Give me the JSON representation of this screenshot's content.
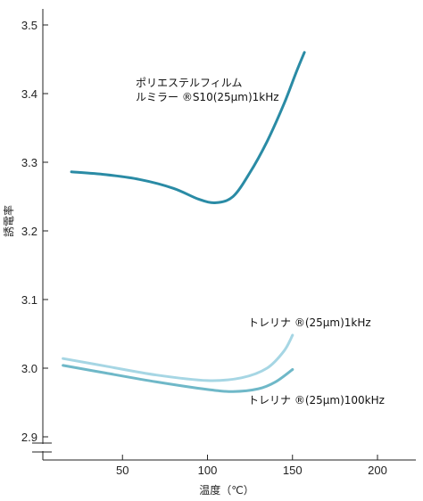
{
  "chart_data": {
    "type": "line",
    "xlabel": "温度（℃）",
    "ylabel": "誘電率",
    "xlim": [
      0,
      225
    ],
    "ylim": [
      2.875,
      3.53
    ],
    "x_ticks": [
      50,
      100,
      150,
      200
    ],
    "y_ticks": [
      2.9,
      3.0,
      3.1,
      3.2,
      3.3,
      3.4,
      3.5
    ],
    "y_tick_labels": [
      "2.9",
      "3.0",
      "3.1",
      "3.2",
      "3.3",
      "3.4",
      "3.5"
    ],
    "axis_break": true,
    "grid": false,
    "series": [
      {
        "name": "ポリエステルフィルム ルミラー®S10(25μm)1kHz",
        "label_lines": [
          "ポリエステルフィルム",
          "ルミラー ®S10(25μm)1kHz"
        ],
        "color": "#2a8ba5",
        "x": [
          20,
          40,
          60,
          80,
          95,
          105,
          115,
          125,
          135,
          145,
          152,
          157
        ],
        "y": [
          3.286,
          3.282,
          3.275,
          3.262,
          3.246,
          3.241,
          3.25,
          3.285,
          3.33,
          3.385,
          3.43,
          3.46
        ]
      },
      {
        "name": "トレリナ®(25μm)1kHz",
        "label_lines": [
          "トレリナ ®(25μm)1kHz"
        ],
        "color": "#a6d6e4",
        "x": [
          15,
          40,
          70,
          100,
          120,
          135,
          145,
          150
        ],
        "y": [
          3.014,
          3.003,
          2.99,
          2.982,
          2.986,
          3.0,
          3.025,
          3.048
        ]
      },
      {
        "name": "トレリナ®(25μm)100kHz",
        "label_lines": [
          "トレリナ ®(25μm)100kHz"
        ],
        "color": "#6fb8c8",
        "x": [
          15,
          40,
          70,
          100,
          115,
          130,
          140,
          150
        ],
        "y": [
          3.004,
          2.993,
          2.98,
          2.969,
          2.966,
          2.97,
          2.98,
          2.998
        ]
      }
    ]
  }
}
